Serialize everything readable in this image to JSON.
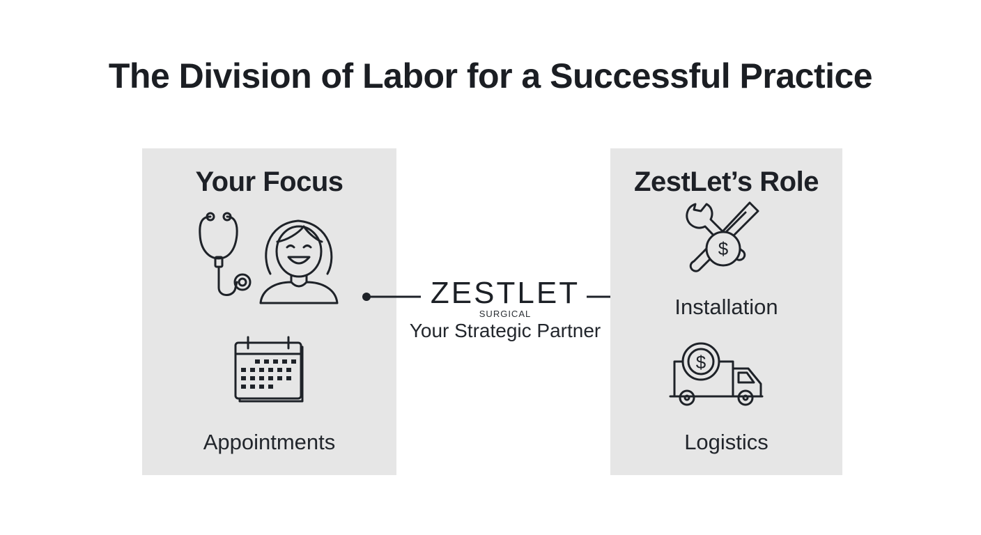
{
  "title": "The Division of Labor for a Successful Practice",
  "left_panel": {
    "heading": "Your Focus",
    "icons": [
      "stethoscope-icon",
      "smiling-person-icon",
      "calendar-icon"
    ],
    "item_label": "Appointments"
  },
  "center": {
    "brand_name": "ZESTLET",
    "brand_sub": "SURGICAL",
    "tagline": "Your Strategic Partner"
  },
  "right_panel": {
    "heading": "ZestLet’s Role",
    "items": [
      {
        "label": "Installation",
        "icon": "tools-dollar-icon"
      },
      {
        "label": "Logistics",
        "icon": "delivery-truck-dollar-icon"
      }
    ]
  },
  "colors": {
    "panel_bg": "#e6e6e6",
    "text": "#1e2228",
    "line": "#1e2228"
  }
}
